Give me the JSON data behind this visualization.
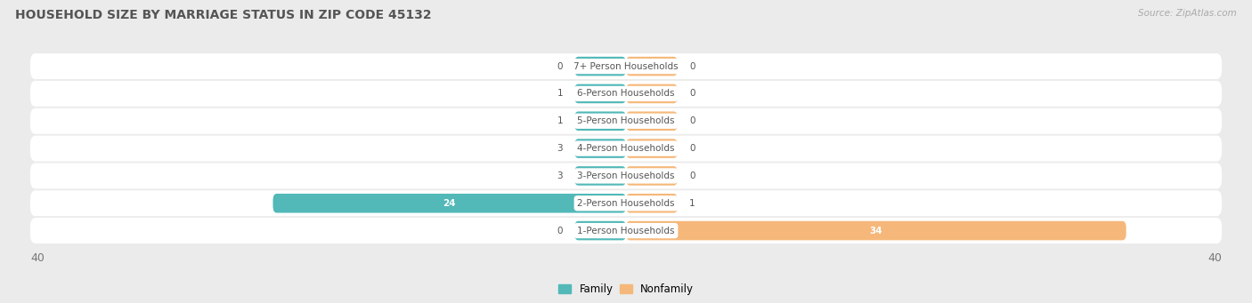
{
  "title": "HOUSEHOLD SIZE BY MARRIAGE STATUS IN ZIP CODE 45132",
  "source": "Source: ZipAtlas.com",
  "categories": [
    "7+ Person Households",
    "6-Person Households",
    "5-Person Households",
    "4-Person Households",
    "3-Person Households",
    "2-Person Households",
    "1-Person Households"
  ],
  "family_values": [
    0,
    1,
    1,
    3,
    3,
    24,
    0
  ],
  "nonfamily_values": [
    0,
    0,
    0,
    0,
    0,
    1,
    34
  ],
  "family_color": "#52b8b8",
  "nonfamily_color": "#f5b87a",
  "family_color_bright": "#2ba8a8",
  "xlim": 40,
  "min_bar_width": 3.5,
  "background_color": "#ebebeb",
  "row_color": "#f5f5f5",
  "label_color": "#555555",
  "title_color": "#555555",
  "source_color": "#aaaaaa",
  "legend_family": "Family",
  "legend_nonfamily": "Nonfamily"
}
